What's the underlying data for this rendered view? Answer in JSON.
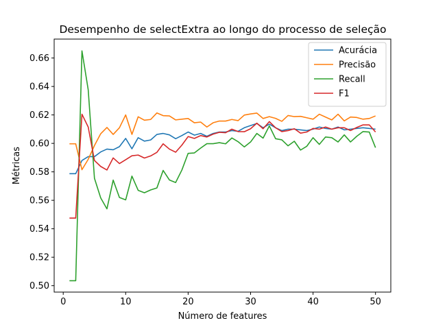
{
  "chart_data": {
    "type": "line",
    "title": "Desempenho de selectExtra ao longo do processo de seleção",
    "xlabel": "Número de features",
    "ylabel": "Métricas",
    "xlim": [
      -1.45,
      52.45
    ],
    "ylim": [
      0.4955,
      0.6733
    ],
    "xticks": [
      0,
      10,
      20,
      30,
      40,
      50
    ],
    "yticks": [
      0.5,
      0.52,
      0.54,
      0.56,
      0.58,
      0.6,
      0.62,
      0.64,
      0.66
    ],
    "ytick_labels": [
      "0.50",
      "0.52",
      "0.54",
      "0.56",
      "0.58",
      "0.60",
      "0.62",
      "0.64",
      "0.66"
    ],
    "grid": false,
    "legend_position": "top-right",
    "x": [
      1,
      2,
      3,
      4,
      5,
      6,
      7,
      8,
      9,
      10,
      11,
      12,
      13,
      14,
      15,
      16,
      17,
      18,
      19,
      20,
      21,
      22,
      23,
      24,
      25,
      26,
      27,
      28,
      29,
      30,
      31,
      32,
      33,
      34,
      35,
      36,
      37,
      38,
      39,
      40,
      41,
      42,
      43,
      44,
      45,
      46,
      47,
      48,
      49,
      50
    ],
    "series": [
      {
        "name": "Acurácia",
        "color": "#1f77b4",
        "values": [
          0.5787,
          0.5787,
          0.588,
          0.5907,
          0.5907,
          0.594,
          0.596,
          0.5955,
          0.5977,
          0.6035,
          0.5962,
          0.604,
          0.6016,
          0.6024,
          0.6063,
          0.607,
          0.606,
          0.6033,
          0.6055,
          0.608,
          0.6058,
          0.607,
          0.605,
          0.607,
          0.608,
          0.608,
          0.609,
          0.6085,
          0.611,
          0.6125,
          0.614,
          0.611,
          0.6135,
          0.611,
          0.609,
          0.61,
          0.61,
          0.6095,
          0.609,
          0.61,
          0.6115,
          0.6105,
          0.61,
          0.6115,
          0.6095,
          0.61,
          0.6105,
          0.611,
          0.6105,
          0.61
        ]
      },
      {
        "name": "Precisão",
        "color": "#ff7f0e",
        "values": [
          0.5997,
          0.5997,
          0.5815,
          0.5888,
          0.5985,
          0.6068,
          0.6112,
          0.6063,
          0.611,
          0.62,
          0.6063,
          0.6187,
          0.6163,
          0.6168,
          0.6214,
          0.6195,
          0.6193,
          0.6165,
          0.617,
          0.6175,
          0.6145,
          0.615,
          0.6115,
          0.6145,
          0.6157,
          0.6157,
          0.6168,
          0.616,
          0.6199,
          0.6207,
          0.6213,
          0.6175,
          0.6188,
          0.6176,
          0.6155,
          0.6196,
          0.6188,
          0.619,
          0.618,
          0.617,
          0.6205,
          0.6185,
          0.6165,
          0.6205,
          0.6158,
          0.6185,
          0.6182,
          0.617,
          0.6175,
          0.6193
        ]
      },
      {
        "name": "Recall",
        "color": "#2ca02c",
        "values": [
          0.5035,
          0.5035,
          0.665,
          0.6377,
          0.5755,
          0.5617,
          0.554,
          0.5742,
          0.562,
          0.5603,
          0.577,
          0.567,
          0.5653,
          0.5673,
          0.5687,
          0.581,
          0.5743,
          0.5725,
          0.5813,
          0.593,
          0.5933,
          0.5967,
          0.5998,
          0.5998,
          0.6005,
          0.5997,
          0.6038,
          0.6012,
          0.5975,
          0.601,
          0.607,
          0.6037,
          0.6123,
          0.6033,
          0.6025,
          0.5983,
          0.6015,
          0.5953,
          0.598,
          0.604,
          0.5993,
          0.6045,
          0.604,
          0.601,
          0.606,
          0.601,
          0.605,
          0.6083,
          0.608,
          0.597
        ]
      },
      {
        "name": "F1",
        "color": "#d62728",
        "values": [
          0.5475,
          0.5475,
          0.6205,
          0.6115,
          0.588,
          0.5838,
          0.5813,
          0.5898,
          0.5858,
          0.5885,
          0.5913,
          0.5918,
          0.5897,
          0.5912,
          0.5937,
          0.5997,
          0.596,
          0.5938,
          0.5988,
          0.6048,
          0.6035,
          0.6055,
          0.6045,
          0.6065,
          0.6078,
          0.6075,
          0.61,
          0.6083,
          0.6082,
          0.6103,
          0.6142,
          0.6103,
          0.6153,
          0.611,
          0.6083,
          0.609,
          0.6103,
          0.6072,
          0.608,
          0.6105,
          0.61,
          0.6115,
          0.61,
          0.611,
          0.611,
          0.609,
          0.6112,
          0.613,
          0.613,
          0.608
        ]
      }
    ]
  }
}
